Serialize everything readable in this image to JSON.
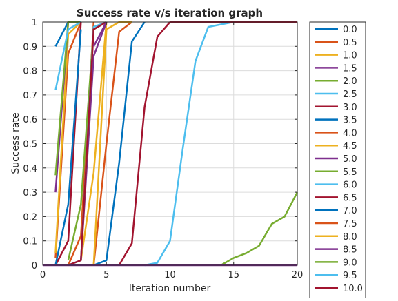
{
  "chart_data": {
    "type": "line",
    "title": "Success rate v/s iteration graph",
    "xlabel": "Iteration number",
    "ylabel": "Success rate",
    "xlim": [
      0,
      20
    ],
    "ylim": [
      0,
      1
    ],
    "xticks": [
      0,
      5,
      10,
      15,
      20
    ],
    "yticks": [
      0,
      0.1,
      0.2,
      0.3,
      0.4,
      0.5,
      0.6,
      0.7,
      0.8,
      0.9,
      1
    ],
    "grid": true,
    "legend_position": "outside-right",
    "series": [
      {
        "name": "0.0",
        "color": "#0072BD",
        "x": [
          1,
          2,
          3
        ],
        "y": [
          0.9,
          1,
          1
        ]
      },
      {
        "name": "0.5",
        "color": "#D95319",
        "x": [
          1,
          2,
          3
        ],
        "y": [
          0.03,
          0.87,
          1
        ]
      },
      {
        "name": "1.0",
        "color": "#EDB120",
        "x": [
          1,
          2,
          3
        ],
        "y": [
          0.05,
          0.95,
          1
        ]
      },
      {
        "name": "1.5",
        "color": "#7E2F8E",
        "x": [
          1,
          2,
          3
        ],
        "y": [
          0.3,
          1,
          1
        ]
      },
      {
        "name": "2.0",
        "color": "#77AC30",
        "x": [
          1,
          2,
          3
        ],
        "y": [
          0.37,
          1,
          1
        ]
      },
      {
        "name": "2.5",
        "color": "#4DBEEE",
        "x": [
          1,
          2,
          3
        ],
        "y": [
          0.72,
          0.97,
          1
        ]
      },
      {
        "name": "3.0",
        "color": "#A2142F",
        "x": [
          1,
          2,
          3
        ],
        "y": [
          0,
          0.1,
          1
        ]
      },
      {
        "name": "3.5",
        "color": "#0072BD",
        "x": [
          1,
          2,
          3
        ],
        "y": [
          0,
          0.25,
          0.97
        ]
      },
      {
        "name": "4.0",
        "color": "#D95319",
        "x": [
          2,
          3,
          4
        ],
        "y": [
          0,
          0.12,
          1
        ]
      },
      {
        "name": "4.5",
        "color": "#EDB120",
        "x": [
          3,
          4,
          5
        ],
        "y": [
          0.02,
          0.38,
          1
        ]
      },
      {
        "name": "5.0",
        "color": "#7E2F8E",
        "x": [
          3,
          4,
          5
        ],
        "y": [
          0.02,
          0.86,
          1
        ]
      },
      {
        "name": "5.5",
        "color": "#77AC30",
        "x": [
          2,
          3,
          4,
          5
        ],
        "y": [
          0.02,
          0.25,
          0.97,
          1
        ]
      },
      {
        "name": "6.0",
        "color": "#4DBEEE",
        "x": [
          2,
          3,
          4,
          5
        ],
        "y": [
          0,
          0.02,
          0.98,
          1
        ]
      },
      {
        "name": "6.5",
        "color": "#A2142F",
        "x": [
          2,
          3,
          4,
          5
        ],
        "y": [
          0,
          0.02,
          0.97,
          1
        ]
      },
      {
        "name": "7.0",
        "color": "#0072BD",
        "x": [
          4,
          5,
          6,
          7,
          8
        ],
        "y": [
          0,
          0.02,
          0.42,
          0.92,
          1
        ]
      },
      {
        "name": "7.5",
        "color": "#D95319",
        "x": [
          4,
          5,
          6,
          7
        ],
        "y": [
          0,
          0.5,
          0.96,
          1
        ]
      },
      {
        "name": "8.0",
        "color": "#EDB120",
        "x": [
          4,
          5,
          6,
          7
        ],
        "y": [
          0,
          0.97,
          1,
          1
        ]
      },
      {
        "name": "8.5",
        "color": "#7E2F8E",
        "x": [
          4,
          5
        ],
        "y": [
          0.9,
          1
        ]
      },
      {
        "name": "9.0",
        "color": "#77AC30",
        "x": [
          14,
          15,
          16,
          17,
          18,
          19,
          20
        ],
        "y": [
          0,
          0.03,
          0.05,
          0.08,
          0.17,
          0.2,
          0.3
        ]
      },
      {
        "name": "9.5",
        "color": "#4DBEEE",
        "x": [
          8,
          9,
          10,
          11,
          12,
          13,
          14,
          15
        ],
        "y": [
          0,
          0.01,
          0.1,
          0.48,
          0.84,
          0.98,
          0.99,
          1
        ]
      },
      {
        "name": "10.0",
        "color": "#A2142F",
        "x": [
          6,
          7,
          8,
          9,
          10
        ],
        "y": [
          0,
          0.09,
          0.65,
          0.94,
          1
        ]
      },
      {
        "name": "",
        "color": "#7E2F8E",
        "x": [
          0,
          20
        ],
        "y": [
          0,
          0
        ]
      },
      {
        "name": "",
        "color": "#A2142F",
        "x": [
          10,
          20
        ],
        "y": [
          1,
          1
        ]
      }
    ]
  }
}
